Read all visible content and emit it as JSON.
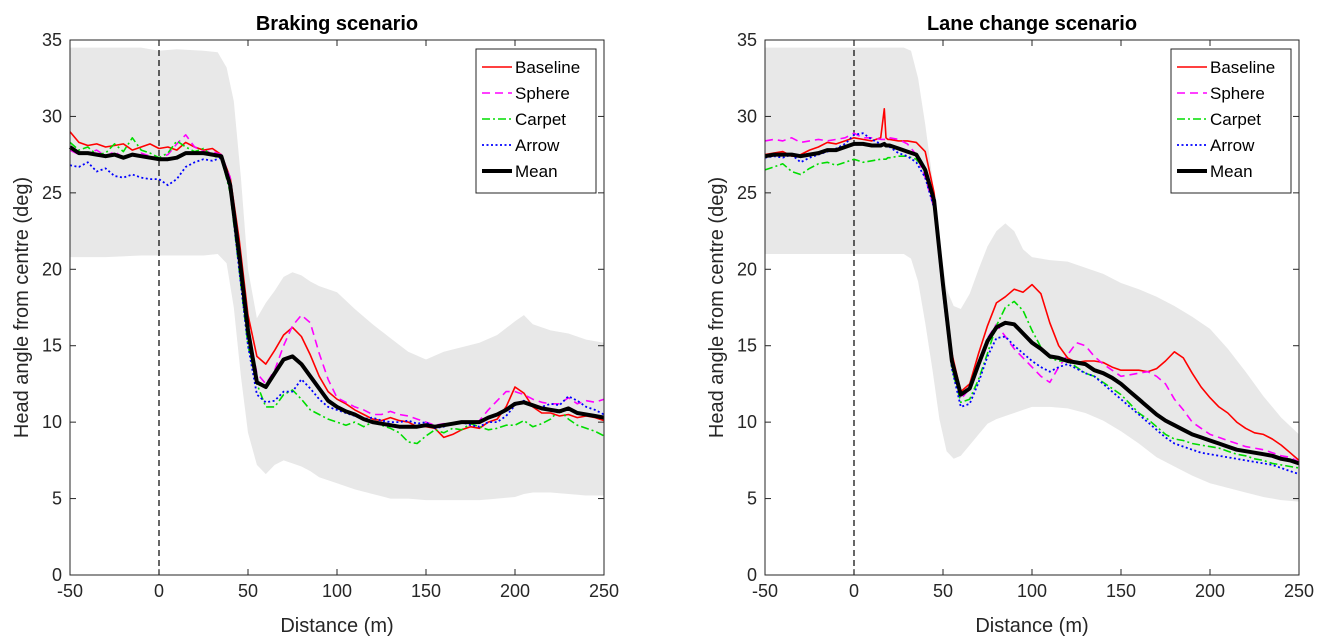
{
  "chart_data": [
    {
      "type": "line",
      "title": "Braking scenario",
      "xlabel": "Distance (m)",
      "ylabel": "Head angle from centre (deg)",
      "xlim": [
        -50,
        250
      ],
      "ylim": [
        0,
        35
      ],
      "xticks": [
        "-50",
        "0",
        "50",
        "100",
        "150",
        "200",
        "250"
      ],
      "yticks": [
        "0",
        "5",
        "10",
        "15",
        "20",
        "25",
        "30",
        "35"
      ],
      "legend_position": "top-right",
      "reference_line_x": 0,
      "band": {
        "color": "#e8e8e8",
        "x": [
          -50,
          -30,
          -10,
          0,
          10,
          25,
          33,
          38,
          42,
          46,
          50,
          55,
          60,
          65,
          70,
          75,
          80,
          85,
          90,
          100,
          110,
          120,
          130,
          140,
          150,
          160,
          170,
          180,
          190,
          200,
          205,
          210,
          220,
          230,
          240,
          250
        ],
        "upper": [
          34.5,
          34.5,
          34.5,
          34.3,
          34.4,
          34.3,
          34.2,
          33.2,
          31,
          26,
          20,
          16.8,
          17.8,
          18.6,
          19.5,
          19.8,
          19.6,
          19.2,
          18.9,
          18.5,
          17.4,
          16.4,
          15.5,
          14.6,
          14.1,
          14.6,
          14.9,
          15.2,
          15.7,
          16.6,
          17,
          16.4,
          16,
          15.8,
          15.4,
          15.2
        ],
        "lower": [
          20.8,
          20.8,
          20.9,
          20.9,
          20.9,
          20.9,
          21,
          20.4,
          17.5,
          13,
          9.3,
          7.2,
          6.6,
          7.2,
          7.5,
          7.3,
          7.1,
          6.8,
          6.4,
          6,
          5.6,
          5.3,
          5,
          5,
          4.9,
          4.9,
          4.9,
          4.9,
          5,
          5.1,
          5.3,
          5.4,
          5.4,
          5.3,
          5.2,
          5.2
        ]
      },
      "x": [
        -50,
        -45,
        -40,
        -35,
        -30,
        -25,
        -20,
        -15,
        -10,
        -5,
        0,
        5,
        10,
        15,
        20,
        25,
        30,
        35,
        40,
        45,
        50,
        55,
        60,
        65,
        70,
        75,
        80,
        85,
        90,
        95,
        100,
        105,
        110,
        115,
        120,
        125,
        130,
        135,
        140,
        145,
        150,
        155,
        160,
        165,
        170,
        175,
        180,
        185,
        190,
        195,
        200,
        205,
        210,
        215,
        220,
        225,
        230,
        235,
        240,
        245,
        250
      ],
      "series": [
        {
          "name": "Baseline",
          "color": "#ff0000",
          "dash": "",
          "width": 1.6,
          "values": [
            29.0,
            28.3,
            28.1,
            28.2,
            28.0,
            28.1,
            28.2,
            27.8,
            28.0,
            28.2,
            27.9,
            28.0,
            27.8,
            28.3,
            28.0,
            27.8,
            27.9,
            27.5,
            26.0,
            22.0,
            17.0,
            14.3,
            13.8,
            14.7,
            15.7,
            16.2,
            15.6,
            14.4,
            13.0,
            12.0,
            11.5,
            11.2,
            10.8,
            10.5,
            10.2,
            10.1,
            10.3,
            10.1,
            10.0,
            9.7,
            9.7,
            9.6,
            9.0,
            9.2,
            9.5,
            9.7,
            9.6,
            10.0,
            10.2,
            11.0,
            12.3,
            11.9,
            11.0,
            10.6,
            10.6,
            10.4,
            10.5,
            10.3,
            10.4,
            10.3,
            10.1
          ]
        },
        {
          "name": "Sphere",
          "color": "#ff00ff",
          "dash": "8 5",
          "width": 1.6,
          "values": [
            27.8,
            27.5,
            27.6,
            27.8,
            27.4,
            27.7,
            27.3,
            27.5,
            27.6,
            27.4,
            27.3,
            27.5,
            28.2,
            28.8,
            28.0,
            27.7,
            27.7,
            27.5,
            26.0,
            21.5,
            16.0,
            13.2,
            12.5,
            13.4,
            15.0,
            16.3,
            17.0,
            16.5,
            14.5,
            12.8,
            11.6,
            11.3,
            11.0,
            10.8,
            10.5,
            10.5,
            10.7,
            10.5,
            10.4,
            10.2,
            10.0,
            9.8,
            9.9,
            9.9,
            10.0,
            9.9,
            10.1,
            10.8,
            11.4,
            12.0,
            12.0,
            11.8,
            11.5,
            11.3,
            11.2,
            11.2,
            11.6,
            11.2,
            11.4,
            11.3,
            11.5
          ]
        },
        {
          "name": "Carpet",
          "color": "#00dd00",
          "dash": "8 3 2 3",
          "width": 1.6,
          "values": [
            28.3,
            27.8,
            28.0,
            27.5,
            27.6,
            28.2,
            27.7,
            28.6,
            27.8,
            27.6,
            27.3,
            27.6,
            28.4,
            28.0,
            27.7,
            27.9,
            27.4,
            27.3,
            25.0,
            20.0,
            15.0,
            12.5,
            11.0,
            11.0,
            11.8,
            12.1,
            11.5,
            10.8,
            10.5,
            10.2,
            10.0,
            9.8,
            10.0,
            9.7,
            10.0,
            9.8,
            9.6,
            9.3,
            8.7,
            8.6,
            9.1,
            9.5,
            9.3,
            9.6,
            9.5,
            9.9,
            9.7,
            9.5,
            9.6,
            9.8,
            9.8,
            10.1,
            9.7,
            9.9,
            10.2,
            10.8,
            10.2,
            9.8,
            9.6,
            9.4,
            9.1
          ]
        },
        {
          "name": "Arrow",
          "color": "#0000ff",
          "dash": "2 2.5",
          "width": 1.8,
          "values": [
            26.8,
            26.7,
            27.0,
            26.4,
            26.6,
            26.1,
            26.0,
            26.2,
            26.0,
            25.9,
            25.9,
            25.5,
            25.9,
            26.7,
            27.0,
            27.2,
            27.1,
            27.3,
            25.2,
            20.0,
            15.0,
            11.8,
            11.3,
            11.4,
            12.0,
            12.0,
            12.8,
            12.2,
            11.5,
            11.0,
            10.8,
            10.6,
            10.4,
            10.2,
            10.3,
            10.1,
            10.0,
            10.0,
            10.1,
            9.9,
            10.0,
            9.6,
            9.7,
            9.9,
            10.0,
            9.8,
            9.7,
            10.0,
            10.0,
            10.4,
            11.1,
            11.4,
            11.0,
            11.0,
            11.2,
            11.1,
            11.7,
            11.4,
            11.0,
            10.8,
            10.5
          ]
        },
        {
          "name": "Mean",
          "color": "#000000",
          "dash": "",
          "width": 4,
          "values": [
            28.0,
            27.6,
            27.6,
            27.5,
            27.4,
            27.5,
            27.3,
            27.5,
            27.4,
            27.3,
            27.2,
            27.2,
            27.3,
            27.6,
            27.6,
            27.6,
            27.5,
            27.4,
            25.5,
            21.0,
            16.0,
            12.6,
            12.3,
            13.2,
            14.1,
            14.3,
            13.8,
            13.0,
            12.2,
            11.4,
            11.0,
            10.7,
            10.5,
            10.2,
            10.0,
            9.9,
            9.8,
            9.7,
            9.7,
            9.7,
            9.8,
            9.7,
            9.8,
            9.9,
            10.0,
            10.0,
            10.0,
            10.3,
            10.5,
            10.8,
            11.2,
            11.3,
            11.1,
            10.9,
            10.8,
            10.7,
            10.9,
            10.6,
            10.5,
            10.4,
            10.3
          ]
        }
      ]
    },
    {
      "type": "line",
      "title": "Lane change scenario",
      "xlabel": "Distance (m)",
      "ylabel": "Head angle from centre (deg)",
      "xlim": [
        -50,
        250
      ],
      "ylim": [
        0,
        35
      ],
      "xticks": [
        "-50",
        "0",
        "50",
        "100",
        "150",
        "200",
        "250"
      ],
      "yticks": [
        "0",
        "5",
        "10",
        "15",
        "20",
        "25",
        "30",
        "35"
      ],
      "legend_position": "top-right",
      "reference_line_x": 0,
      "band": {
        "color": "#e8e8e8",
        "x": [
          -50,
          -30,
          -10,
          0,
          10,
          20,
          28,
          32,
          36,
          40,
          44,
          48,
          52,
          56,
          60,
          65,
          70,
          75,
          80,
          85,
          90,
          95,
          100,
          110,
          120,
          130,
          140,
          150,
          160,
          170,
          180,
          190,
          200,
          210,
          220,
          230,
          240,
          250
        ],
        "upper": [
          34.5,
          34.5,
          34.5,
          34.5,
          34.5,
          34.5,
          34.5,
          34.3,
          32.5,
          29.5,
          26,
          22,
          18.7,
          17.6,
          17.4,
          18.4,
          20,
          21.5,
          22.5,
          23,
          22.5,
          21.3,
          20.8,
          20.6,
          20.5,
          20.1,
          19.7,
          19.1,
          18.7,
          18.2,
          17.6,
          16.9,
          16.1,
          14.8,
          13.3,
          11.7,
          10.3,
          9.2
        ],
        "lower": [
          21,
          21,
          21,
          21,
          21,
          21,
          21,
          20.7,
          19.2,
          16.5,
          13.5,
          10.2,
          8.1,
          7.6,
          7.8,
          8.5,
          9.2,
          9.9,
          10.2,
          10.4,
          10.6,
          10.8,
          11,
          11,
          10.9,
          10.6,
          10.1,
          9.4,
          8.6,
          7.7,
          7.1,
          6.5,
          6,
          5.7,
          5.4,
          5.1,
          4.9,
          4.8
        ]
      },
      "x": [
        -50,
        -45,
        -40,
        -35,
        -30,
        -25,
        -20,
        -15,
        -10,
        -5,
        0,
        5,
        10,
        15,
        17,
        18,
        19,
        20,
        25,
        30,
        35,
        40,
        45,
        50,
        55,
        60,
        65,
        70,
        75,
        80,
        85,
        90,
        95,
        100,
        105,
        110,
        115,
        120,
        125,
        130,
        135,
        140,
        145,
        150,
        155,
        160,
        165,
        170,
        175,
        180,
        185,
        190,
        195,
        200,
        205,
        210,
        215,
        220,
        225,
        230,
        235,
        240,
        245,
        250
      ],
      "series": [
        {
          "name": "Baseline",
          "color": "#ff0000",
          "dash": "",
          "width": 1.6,
          "values": [
            27.5,
            27.6,
            27.7,
            27.4,
            27.5,
            27.8,
            28.0,
            28.3,
            28.2,
            28.4,
            28.6,
            28.5,
            28.4,
            28.6,
            30.5,
            28.6,
            28.5,
            28.5,
            28.4,
            28.4,
            28.3,
            27.7,
            25.0,
            19.5,
            14.5,
            12.0,
            12.5,
            14.5,
            16.3,
            17.8,
            18.2,
            18.7,
            18.5,
            19.0,
            18.4,
            16.5,
            15.0,
            14.2,
            13.9,
            14.0,
            14.0,
            13.9,
            13.6,
            13.4,
            13.4,
            13.4,
            13.3,
            13.5,
            14.0,
            14.6,
            14.2,
            13.2,
            12.3,
            11.6,
            11.0,
            10.6,
            10.0,
            9.6,
            9.3,
            9.2,
            8.9,
            8.5,
            8.0,
            7.5
          ]
        },
        {
          "name": "Sphere",
          "color": "#ff00ff",
          "dash": "8 5",
          "width": 1.6,
          "values": [
            28.4,
            28.5,
            28.4,
            28.6,
            28.3,
            28.4,
            28.5,
            28.4,
            28.5,
            28.6,
            28.9,
            28.6,
            28.6,
            28.5,
            28.5,
            28.5,
            28.6,
            28.6,
            28.5,
            28.2,
            27.5,
            26.0,
            24.0,
            19.0,
            14.0,
            11.5,
            12.2,
            13.8,
            15.5,
            16.4,
            15.6,
            14.8,
            14.2,
            13.6,
            13.0,
            12.6,
            13.6,
            14.4,
            15.2,
            15.0,
            14.3,
            13.8,
            13.4,
            13.0,
            13.1,
            13.2,
            13.3,
            13.0,
            12.5,
            11.5,
            10.8,
            10.0,
            9.6,
            9.2,
            9.0,
            8.8,
            8.6,
            8.4,
            8.3,
            8.2,
            8.0,
            7.8,
            7.7,
            7.4
          ]
        },
        {
          "name": "Carpet",
          "color": "#00dd00",
          "dash": "8 3 2 3",
          "width": 1.6,
          "values": [
            26.5,
            26.7,
            26.9,
            26.4,
            26.2,
            26.6,
            26.9,
            27.0,
            26.8,
            27.0,
            27.2,
            27.0,
            27.1,
            27.2,
            27.2,
            27.2,
            27.3,
            27.3,
            27.4,
            27.4,
            27.2,
            26.5,
            24.5,
            19.0,
            13.5,
            11.3,
            11.5,
            12.8,
            14.5,
            16.3,
            17.5,
            17.9,
            17.3,
            16.0,
            14.9,
            14.2,
            14.0,
            14.0,
            13.6,
            13.2,
            13.0,
            12.6,
            12.2,
            11.8,
            11.2,
            10.6,
            10.2,
            9.7,
            9.2,
            8.9,
            8.8,
            8.6,
            8.5,
            8.4,
            8.3,
            8.1,
            7.9,
            7.8,
            7.6,
            7.5,
            7.3,
            7.2,
            7.1,
            7.0
          ]
        },
        {
          "name": "Arrow",
          "color": "#0000ff",
          "dash": "2 2.5",
          "width": 1.8,
          "values": [
            27.3,
            27.4,
            27.3,
            27.5,
            27.0,
            27.3,
            27.5,
            27.7,
            27.9,
            28.2,
            28.8,
            28.9,
            28.5,
            28.2,
            28.2,
            28.1,
            28.1,
            28.0,
            27.6,
            27.4,
            27.0,
            26.0,
            24.0,
            18.5,
            13.5,
            11.0,
            11.2,
            12.6,
            14.3,
            15.5,
            15.6,
            15.0,
            14.5,
            14.0,
            13.6,
            13.3,
            13.6,
            13.8,
            13.5,
            13.2,
            13.0,
            12.5,
            12.0,
            11.5,
            11.0,
            10.5,
            10.0,
            9.5,
            9.0,
            8.6,
            8.4,
            8.2,
            8.0,
            7.9,
            7.8,
            7.7,
            7.6,
            7.5,
            7.4,
            7.3,
            7.2,
            7.0,
            6.8,
            6.6
          ]
        },
        {
          "name": "Mean",
          "color": "#000000",
          "dash": "",
          "width": 4,
          "values": [
            27.4,
            27.5,
            27.5,
            27.5,
            27.4,
            27.5,
            27.6,
            27.8,
            27.8,
            28.0,
            28.2,
            28.2,
            28.1,
            28.1,
            28.2,
            28.1,
            28.1,
            28.1,
            27.9,
            27.7,
            27.5,
            26.5,
            24.5,
            19.0,
            14.0,
            11.8,
            12.2,
            13.8,
            15.3,
            16.2,
            16.5,
            16.4,
            15.8,
            15.2,
            14.8,
            14.3,
            14.2,
            14.0,
            13.9,
            13.8,
            13.4,
            13.2,
            12.9,
            12.5,
            12.0,
            11.5,
            11.0,
            10.5,
            10.1,
            9.8,
            9.5,
            9.2,
            9.0,
            8.8,
            8.6,
            8.4,
            8.2,
            8.1,
            8.0,
            7.9,
            7.8,
            7.6,
            7.5,
            7.3
          ]
        }
      ]
    }
  ]
}
